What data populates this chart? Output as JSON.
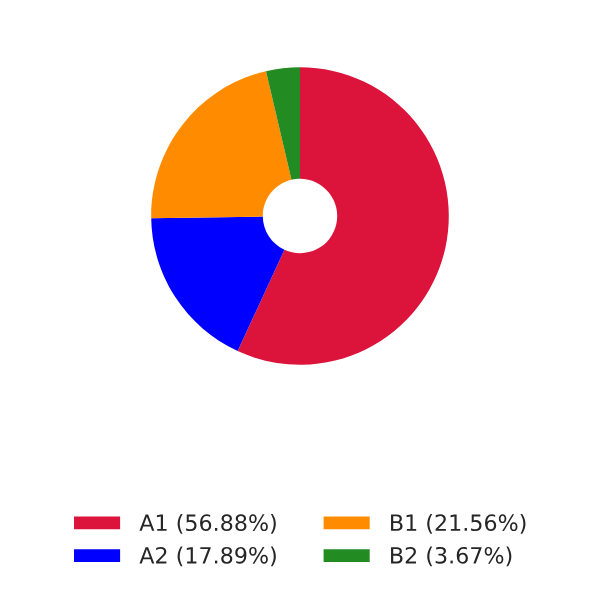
{
  "chart_data": {
    "type": "donut",
    "categories": [
      "A1 (56.88%)",
      "A2 (17.89%)",
      "B1 (21.56%)",
      "B2 (3.67%)"
    ],
    "values": [
      56.88,
      17.89,
      21.56,
      3.67
    ],
    "colors": [
      "#dc143c",
      "#0000ff",
      "#ff8c00",
      "#228b22"
    ],
    "legend": "bottom"
  }
}
